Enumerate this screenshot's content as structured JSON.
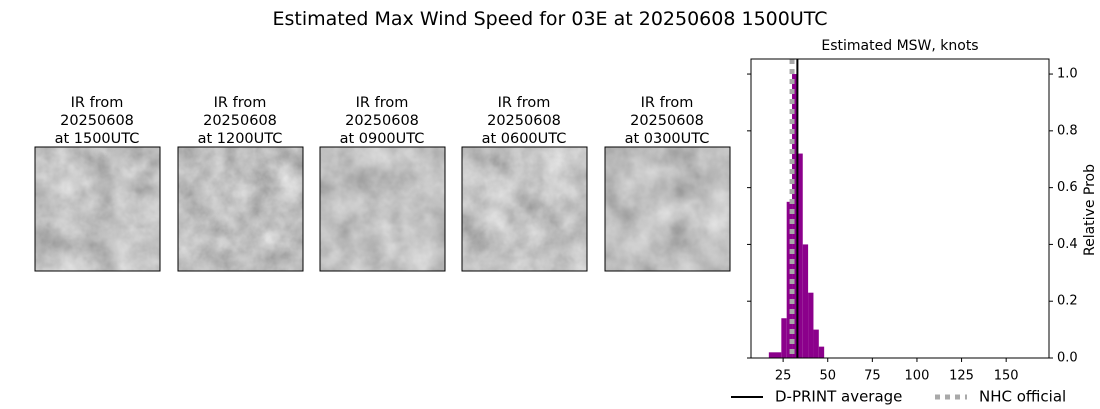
{
  "title": "Estimated Max Wind Speed for 03E at 20250608 1500UTC",
  "panels": [
    {
      "lines": [
        "IR from",
        "20250608",
        "at 1500UTC"
      ]
    },
    {
      "lines": [
        "IR from",
        "20250608",
        "at 1200UTC"
      ]
    },
    {
      "lines": [
        "IR from",
        "20250608",
        "at 0900UTC"
      ]
    },
    {
      "lines": [
        "IR from",
        "20250608",
        "at 0600UTC"
      ]
    },
    {
      "lines": [
        "IR from",
        "20250608",
        "at 0300UTC"
      ]
    }
  ],
  "chart_data": {
    "type": "histogram",
    "title": "Estimated MSW, knots",
    "y_label": "Relative Prob",
    "bins": [
      17,
      24,
      27,
      30,
      33,
      36,
      39,
      42,
      45,
      48
    ],
    "values": [
      0.02,
      0.14,
      0.55,
      1.0,
      0.72,
      0.4,
      0.23,
      0.1,
      0.04
    ],
    "color": "#8b008b",
    "xlim": [
      7,
      174
    ],
    "xticks": [
      25,
      50,
      75,
      100,
      125,
      150
    ],
    "ylim": [
      0,
      1.053
    ],
    "yticks": [
      {
        "value": 0,
        "label": "0.0"
      },
      {
        "value": 0.2,
        "label": "0.2"
      },
      {
        "value": 0.4,
        "label": "0.4"
      },
      {
        "value": 0.6,
        "label": "0.6"
      },
      {
        "value": 0.8,
        "label": "0.8"
      },
      {
        "value": 1.0,
        "label": "1.0"
      }
    ],
    "lines": [
      {
        "name": "D-PRINT average",
        "value": 33,
        "color": "#000000",
        "style": "solid"
      },
      {
        "name": "NHC official",
        "value": 30,
        "color": "#a9a9a9",
        "style": "dotted"
      }
    ]
  }
}
